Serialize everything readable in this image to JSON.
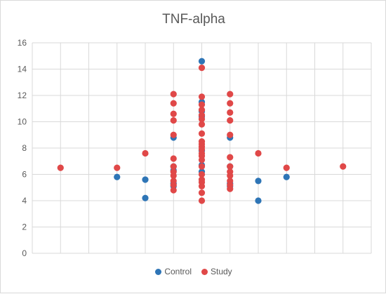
{
  "chart_data": {
    "type": "scatter",
    "title": "TNF-alpha",
    "xlabel": "",
    "ylabel": "",
    "xlim": [
      0,
      12
    ],
    "ylim": [
      0,
      16
    ],
    "y_ticks": [
      "0",
      "2",
      "4",
      "6",
      "8",
      "10",
      "12",
      "14",
      "16"
    ],
    "grid": "major both axes",
    "legend_position": "bottom",
    "series": [
      {
        "name": "Control",
        "color": "#2e75b6",
        "points": [
          [
            3,
            5.8
          ],
          [
            4,
            4.2
          ],
          [
            4,
            5.6
          ],
          [
            5,
            8.8
          ],
          [
            5,
            6.6
          ],
          [
            5,
            6.3
          ],
          [
            5,
            5.3
          ],
          [
            5,
            5.1
          ],
          [
            6,
            14.6
          ],
          [
            6,
            11.5
          ],
          [
            6,
            10.8
          ],
          [
            6,
            10.4
          ],
          [
            6,
            7.8
          ],
          [
            6,
            6.7
          ],
          [
            6,
            6.2
          ],
          [
            7,
            8.8
          ],
          [
            7,
            6.6
          ],
          [
            7,
            5.3
          ],
          [
            7,
            5.1
          ],
          [
            8,
            5.5
          ],
          [
            8,
            4.0
          ],
          [
            9,
            5.8
          ]
        ]
      },
      {
        "name": "Study",
        "color": "#e04848",
        "points": [
          [
            1,
            6.5
          ],
          [
            3,
            6.5
          ],
          [
            4,
            7.6
          ],
          [
            5,
            12.1
          ],
          [
            5,
            11.4
          ],
          [
            5,
            10.6
          ],
          [
            5,
            10.1
          ],
          [
            5,
            9.0
          ],
          [
            5,
            7.2
          ],
          [
            5,
            6.6
          ],
          [
            5,
            6.2
          ],
          [
            5,
            5.9
          ],
          [
            5,
            5.5
          ],
          [
            5,
            5.2
          ],
          [
            5,
            4.8
          ],
          [
            6,
            14.1
          ],
          [
            6,
            11.9
          ],
          [
            6,
            11.3
          ],
          [
            6,
            10.9
          ],
          [
            6,
            10.5
          ],
          [
            6,
            10.2
          ],
          [
            6,
            9.8
          ],
          [
            6,
            9.1
          ],
          [
            6,
            8.5
          ],
          [
            6,
            8.3
          ],
          [
            6,
            8.1
          ],
          [
            6,
            7.9
          ],
          [
            6,
            7.6
          ],
          [
            6,
            7.4
          ],
          [
            6,
            7.1
          ],
          [
            6,
            6.6
          ],
          [
            6,
            6.0
          ],
          [
            6,
            5.6
          ],
          [
            6,
            5.4
          ],
          [
            6,
            5.1
          ],
          [
            6,
            4.6
          ],
          [
            6,
            4.0
          ],
          [
            7,
            12.1
          ],
          [
            7,
            11.4
          ],
          [
            7,
            10.7
          ],
          [
            7,
            10.1
          ],
          [
            7,
            9.0
          ],
          [
            7,
            7.3
          ],
          [
            7,
            6.6
          ],
          [
            7,
            6.2
          ],
          [
            7,
            5.9
          ],
          [
            7,
            5.5
          ],
          [
            7,
            5.2
          ],
          [
            7,
            4.9
          ],
          [
            8,
            7.6
          ],
          [
            9,
            6.5
          ],
          [
            11,
            6.6
          ]
        ]
      }
    ]
  }
}
